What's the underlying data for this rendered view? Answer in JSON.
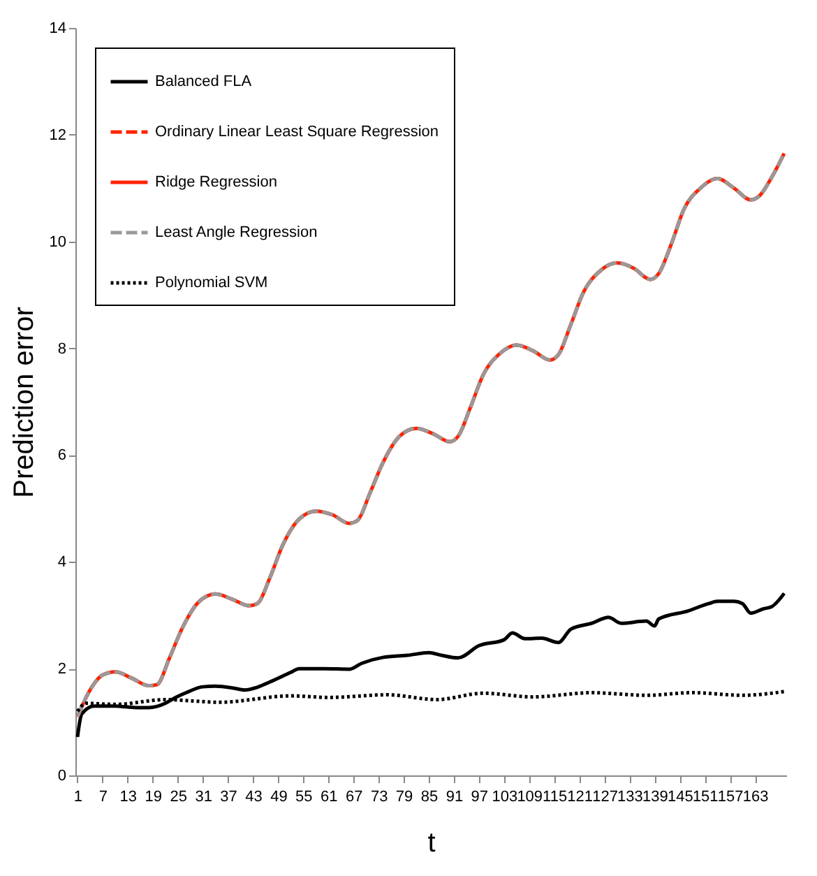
{
  "chart_data": {
    "type": "line",
    "xlabel": "t",
    "ylabel": "Prediction error",
    "xlim": [
      0.5,
      170.5
    ],
    "xticks": [
      1,
      7,
      13,
      19,
      25,
      31,
      37,
      43,
      49,
      55,
      61,
      67,
      73,
      79,
      85,
      91,
      97,
      103,
      109,
      115,
      121,
      127,
      133,
      139,
      145,
      151,
      157,
      163
    ],
    "ylim": [
      0,
      14
    ],
    "yticks": [
      0,
      2,
      4,
      6,
      8,
      10,
      12,
      14
    ],
    "grid": false,
    "legend": "top left",
    "series": [
      {
        "name": "Balanced FLA",
        "color": "#000000",
        "line_style": "solid",
        "x": [
          1,
          2,
          5,
          10,
          15,
          18,
          22,
          24,
          27,
          31,
          34,
          38,
          41,
          44,
          47,
          52,
          54,
          60,
          66,
          69,
          74,
          80,
          85,
          88,
          92,
          97,
          103,
          105,
          108,
          112,
          116,
          119,
          124,
          128,
          131,
          137,
          139,
          140,
          147,
          152,
          154,
          158,
          160,
          162,
          165,
          167,
          170
        ],
        "values": [
          0.72,
          1.15,
          1.3,
          1.3,
          1.27,
          1.27,
          1.35,
          1.44,
          1.55,
          1.66,
          1.67,
          1.64,
          1.6,
          1.65,
          1.75,
          1.93,
          2.0,
          2.0,
          1.99,
          2.1,
          2.21,
          2.25,
          2.3,
          2.25,
          2.2,
          2.43,
          2.54,
          2.67,
          2.56,
          2.57,
          2.49,
          2.74,
          2.85,
          2.96,
          2.85,
          2.89,
          2.8,
          2.93,
          3.08,
          3.22,
          3.26,
          3.26,
          3.22,
          3.04,
          3.12,
          3.16,
          3.41
        ]
      },
      {
        "name": "Ordinary Linear Least Square Regression",
        "color": "#ff2200",
        "line_style": "dashed",
        "x": [
          1,
          4,
          7,
          10,
          14,
          18,
          20,
          23,
          26,
          30,
          34,
          38,
          42,
          44,
          47,
          50,
          54,
          58,
          62,
          66,
          68,
          71,
          74,
          78,
          82,
          86,
          90,
          92,
          95,
          98,
          102,
          106,
          110,
          114,
          116,
          119,
          122,
          126,
          130,
          134,
          138,
          140,
          143,
          146,
          150,
          154,
          158,
          162,
          164,
          167,
          170
        ],
        "values": [
          1.1,
          1.6,
          1.88,
          1.94,
          1.82,
          1.68,
          1.7,
          2.2,
          2.75,
          3.25,
          3.4,
          3.3,
          3.18,
          3.22,
          3.7,
          4.3,
          4.8,
          4.95,
          4.88,
          4.72,
          4.78,
          5.3,
          5.85,
          6.35,
          6.5,
          6.4,
          6.25,
          6.35,
          6.9,
          7.5,
          7.9,
          8.06,
          7.95,
          7.78,
          7.88,
          8.45,
          9.05,
          9.45,
          9.6,
          9.5,
          9.29,
          9.4,
          9.95,
          10.6,
          11.0,
          11.18,
          11.0,
          10.78,
          10.85,
          11.2,
          11.65
        ]
      },
      {
        "name": "Ridge Regression",
        "color": "#ff2200",
        "line_style": "solid",
        "x": [
          1,
          4,
          7,
          10,
          14,
          18,
          20,
          23,
          26,
          30,
          34,
          38,
          42,
          44,
          47,
          50,
          54,
          58,
          62,
          66,
          68,
          71,
          74,
          78,
          82,
          86,
          90,
          92,
          95,
          98,
          102,
          106,
          110,
          114,
          116,
          119,
          122,
          126,
          130,
          134,
          138,
          140,
          143,
          146,
          150,
          154,
          158,
          162,
          164,
          167,
          170
        ],
        "values": [
          1.1,
          1.6,
          1.88,
          1.94,
          1.82,
          1.68,
          1.7,
          2.2,
          2.75,
          3.25,
          3.4,
          3.3,
          3.18,
          3.22,
          3.7,
          4.3,
          4.8,
          4.95,
          4.88,
          4.72,
          4.78,
          5.3,
          5.85,
          6.35,
          6.5,
          6.4,
          6.25,
          6.35,
          6.9,
          7.5,
          7.9,
          8.06,
          7.95,
          7.78,
          7.88,
          8.45,
          9.05,
          9.45,
          9.6,
          9.5,
          9.29,
          9.4,
          9.95,
          10.6,
          11.0,
          11.18,
          11.0,
          10.78,
          10.85,
          11.2,
          11.65
        ]
      },
      {
        "name": "Least Angle Regression",
        "color": "#999999",
        "line_style": "dashed",
        "x": [
          1,
          4,
          7,
          10,
          14,
          18,
          20,
          23,
          26,
          30,
          34,
          38,
          42,
          44,
          47,
          50,
          54,
          58,
          62,
          66,
          68,
          71,
          74,
          78,
          82,
          86,
          90,
          92,
          95,
          98,
          102,
          106,
          110,
          114,
          116,
          119,
          122,
          126,
          130,
          134,
          138,
          140,
          143,
          146,
          150,
          154,
          158,
          162,
          164,
          167,
          170
        ],
        "values": [
          1.1,
          1.6,
          1.88,
          1.94,
          1.82,
          1.68,
          1.7,
          2.2,
          2.75,
          3.25,
          3.4,
          3.3,
          3.18,
          3.22,
          3.7,
          4.3,
          4.8,
          4.95,
          4.88,
          4.72,
          4.78,
          5.3,
          5.85,
          6.35,
          6.5,
          6.4,
          6.25,
          6.35,
          6.9,
          7.5,
          7.9,
          8.06,
          7.95,
          7.78,
          7.88,
          8.45,
          9.05,
          9.45,
          9.6,
          9.5,
          9.29,
          9.4,
          9.95,
          10.6,
          11.0,
          11.18,
          11.0,
          10.78,
          10.85,
          11.2,
          11.65
        ]
      },
      {
        "name": "Polynomial SVM",
        "color": "#000000",
        "line_style": "dotted",
        "x": [
          1,
          3,
          10,
          22,
          35,
          52,
          61,
          75,
          87,
          98,
          110,
          124,
          137,
          148,
          160,
          170
        ],
        "values": [
          1.2,
          1.35,
          1.33,
          1.42,
          1.37,
          1.49,
          1.46,
          1.51,
          1.42,
          1.54,
          1.47,
          1.55,
          1.5,
          1.55,
          1.5,
          1.57
        ]
      }
    ]
  }
}
